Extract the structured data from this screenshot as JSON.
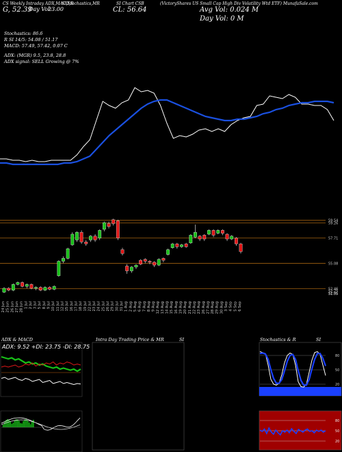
{
  "header": {
    "h1": "CS Weekly Intraday ADX,MACD,R",
    "h1b": "SI,Stochastics,MR",
    "h1c": "SI Chart CSB",
    "h1d": "(VictoryShares US Small Cap High Div Volatility Wtd ETF) MunafaSale.com",
    "h2a": "G, 52.39",
    "h2b": "Day Vol:",
    "h2c": "23.00",
    "cl": "CL: 56.64",
    "avg": "Avg Vol: 0.024 M",
    "dayvol": "Day Vol: 0   M"
  },
  "info": [
    "Stochastics: 86.6",
    "R                    SI 14/5: 54.08 / 51.17",
    "MACD: 57.49, 57.42, 0.07 C",
    "ADX:                    (MGR) 9.5, 23.8, 28.8",
    "ADX  signal: SELL  Growing @ 7%"
  ],
  "panels": {
    "adx_title": "ADX  & MACD",
    "adx_values": "ADX: 9.52  +DI: 23.75  -DI: 28.75",
    "intraday_title": "Intra  Day Trading Price  & MR",
    "intraday_si": "SI",
    "stoch_title": "Stochastics & R",
    "stoch_si": "SI"
  },
  "colors": {
    "up": "#18c018",
    "down": "#e01818",
    "ma": "#1a50e0",
    "stoch": "#1a40ff",
    "rsi_bg": "#a00000"
  },
  "chart_data": [
    {
      "type": "line",
      "title": "price vs moving average (upper panel)",
      "x": [
        0,
        1,
        2,
        3,
        4,
        5,
        6,
        7,
        8,
        9,
        10,
        11,
        12,
        13,
        14,
        15,
        16,
        17,
        18,
        19,
        20,
        21,
        22,
        23,
        24,
        25,
        26,
        27,
        28,
        29,
        30,
        31,
        32,
        33,
        34,
        35,
        36,
        37,
        38,
        39,
        40,
        41,
        42,
        43,
        44,
        45,
        46,
        47,
        48,
        49,
        50,
        51,
        52
      ],
      "series": [
        {
          "name": "price",
          "values": [
            52.4,
            52.4,
            52.3,
            52.3,
            52.2,
            52.3,
            52.2,
            52.2,
            52.3,
            52.3,
            52.3,
            52.3,
            52.7,
            53.3,
            53.8,
            55.2,
            56.6,
            56.3,
            56.1,
            56.5,
            56.7,
            57.6,
            57.3,
            57.4,
            57.2,
            56.3,
            55.0,
            53.9,
            54.1,
            54.0,
            54.2,
            54.5,
            54.6,
            54.4,
            54.6,
            54.4,
            54.9,
            55.2,
            55.4,
            55.5,
            56.3,
            56.4,
            57.0,
            56.9,
            56.8,
            57.1,
            56.9,
            56.4,
            56.4,
            56.3,
            56.3,
            56.0,
            55.2
          ]
        },
        {
          "name": "ma",
          "values": [
            52.1,
            52.1,
            52.0,
            52.0,
            52.0,
            52.0,
            52.0,
            52.0,
            52.0,
            52.0,
            52.1,
            52.1,
            52.2,
            52.4,
            52.6,
            53.1,
            53.6,
            54.1,
            54.5,
            54.9,
            55.3,
            55.7,
            56.1,
            56.4,
            56.6,
            56.7,
            56.7,
            56.5,
            56.3,
            56.1,
            55.9,
            55.7,
            55.5,
            55.4,
            55.3,
            55.2,
            55.2,
            55.3,
            55.3,
            55.4,
            55.5,
            55.7,
            55.8,
            56.0,
            56.1,
            56.3,
            56.4,
            56.5,
            56.5,
            56.6,
            56.6,
            56.6,
            56.5
          ]
        }
      ]
    },
    {
      "type": "bar",
      "title": "candlestick panel",
      "yaxis_labels": [
        "59.54",
        "59.26",
        "57.71",
        "55.08",
        "52.46",
        "52.25",
        "52.01",
        "51.95"
      ],
      "xticks": [
        "24 Jun",
        "25 Jun",
        "26 Jun",
        "27 Jun",
        "28 Jun",
        "1 Jul",
        "2 Jul",
        "3 Jul",
        "5 Jul",
        "8 Jul",
        "9 Jul",
        "10 Jul",
        "11 Jul",
        "12 Jul",
        "15 Jul",
        "16 Jul",
        "17 Jul",
        "18 Jul",
        "19 Jul",
        "22 Jul",
        "23 Jul",
        "24 Jul",
        "25 Jul",
        "26 Jul",
        "29 Jul",
        "30 Jul",
        "31 Jul",
        "1 Aug",
        "2 Aug",
        "5 Aug",
        "6 Aug",
        "7 Aug",
        "8 Aug",
        "9 Aug",
        "12 Aug",
        "13 Aug",
        "14 Aug",
        "15 Aug",
        "16 Aug",
        "19 Aug",
        "20 Aug",
        "21 Aug",
        "22 Aug",
        "23 Aug",
        "26 Aug",
        "27 Aug",
        "28 Aug",
        "29 Aug",
        "30 Aug",
        "3 Sep",
        "4 Sep",
        "5 Sep",
        "6 Sep"
      ],
      "candles": [
        {
          "o": 52.1,
          "c": 52.5,
          "h": 52.6,
          "l": 52.0
        },
        {
          "o": 52.5,
          "c": 52.3,
          "h": 52.6,
          "l": 52.2
        },
        {
          "o": 52.3,
          "c": 52.9,
          "h": 53.0,
          "l": 52.2
        },
        {
          "o": 52.9,
          "c": 53.1,
          "h": 53.2,
          "l": 52.8
        },
        {
          "o": 53.1,
          "c": 52.7,
          "h": 53.2,
          "l": 52.6
        },
        {
          "o": 52.7,
          "c": 52.9,
          "h": 53.0,
          "l": 52.5
        },
        {
          "o": 52.9,
          "c": 52.5,
          "h": 53.0,
          "l": 52.4
        },
        {
          "o": 52.5,
          "c": 52.6,
          "h": 52.7,
          "l": 52.3
        },
        {
          "o": 52.6,
          "c": 52.3,
          "h": 52.7,
          "l": 52.2
        },
        {
          "o": 52.3,
          "c": 52.6,
          "h": 52.7,
          "l": 52.2
        },
        {
          "o": 52.6,
          "c": 52.4,
          "h": 52.7,
          "l": 52.3
        },
        {
          "o": 52.4,
          "c": 52.7,
          "h": 52.8,
          "l": 52.3
        },
        {
          "o": 53.8,
          "c": 55.3,
          "h": 55.4,
          "l": 53.7
        },
        {
          "o": 55.3,
          "c": 55.6,
          "h": 55.8,
          "l": 55.1
        },
        {
          "o": 55.6,
          "c": 56.6,
          "h": 56.7,
          "l": 55.5
        },
        {
          "o": 57.0,
          "c": 58.1,
          "h": 58.3,
          "l": 56.9
        },
        {
          "o": 57.5,
          "c": 58.3,
          "h": 58.4,
          "l": 57.3
        },
        {
          "o": 58.3,
          "c": 57.3,
          "h": 58.5,
          "l": 57.1
        },
        {
          "o": 57.3,
          "c": 57.1,
          "h": 57.5,
          "l": 56.9
        },
        {
          "o": 57.5,
          "c": 57.9,
          "h": 58.0,
          "l": 57.3
        },
        {
          "o": 57.9,
          "c": 57.5,
          "h": 58.1,
          "l": 57.3
        },
        {
          "o": 57.7,
          "c": 58.5,
          "h": 58.6,
          "l": 57.5
        },
        {
          "o": 58.6,
          "c": 59.3,
          "h": 59.4,
          "l": 58.4
        },
        {
          "o": 59.2,
          "c": 58.9,
          "h": 59.4,
          "l": 58.7
        },
        {
          "o": 59.6,
          "c": 59.2,
          "h": 59.7,
          "l": 59.0
        },
        {
          "o": 59.5,
          "c": 57.7,
          "h": 59.6,
          "l": 57.5
        },
        {
          "o": 56.5,
          "c": 56.1,
          "h": 56.7,
          "l": 55.9
        },
        {
          "o": 54.8,
          "c": 54.3,
          "h": 55.0,
          "l": 54.0
        },
        {
          "o": 54.3,
          "c": 54.7,
          "h": 54.8,
          "l": 54.1
        },
        {
          "o": 54.7,
          "c": 54.9,
          "h": 55.0,
          "l": 54.5
        },
        {
          "o": 55.4,
          "c": 55.0,
          "h": 55.5,
          "l": 54.9
        },
        {
          "o": 55.5,
          "c": 55.3,
          "h": 55.6,
          "l": 55.1
        },
        {
          "o": 55.3,
          "c": 55.2,
          "h": 55.4,
          "l": 55.0
        },
        {
          "o": 55.2,
          "c": 54.9,
          "h": 55.3,
          "l": 54.7
        },
        {
          "o": 54.9,
          "c": 55.5,
          "h": 55.6,
          "l": 54.8
        },
        {
          "o": 55.6,
          "c": 55.4,
          "h": 55.7,
          "l": 55.2
        },
        {
          "o": 56.0,
          "c": 56.5,
          "h": 56.6,
          "l": 55.9
        },
        {
          "o": 56.7,
          "c": 57.1,
          "h": 57.2,
          "l": 56.6
        },
        {
          "o": 57.1,
          "c": 56.8,
          "h": 57.2,
          "l": 56.6
        },
        {
          "o": 56.8,
          "c": 57.0,
          "h": 57.1,
          "l": 56.7
        },
        {
          "o": 57.1,
          "c": 56.8,
          "h": 57.2,
          "l": 56.7
        },
        {
          "o": 57.2,
          "c": 58.0,
          "h": 58.1,
          "l": 57.1
        },
        {
          "o": 57.8,
          "c": 58.3,
          "h": 59.1,
          "l": 57.7
        },
        {
          "o": 57.9,
          "c": 57.6,
          "h": 58.0,
          "l": 57.4
        },
        {
          "o": 58.0,
          "c": 57.6,
          "h": 58.1,
          "l": 57.4
        },
        {
          "o": 58.1,
          "c": 58.5,
          "h": 58.6,
          "l": 58.0
        },
        {
          "o": 58.5,
          "c": 58.0,
          "h": 58.6,
          "l": 57.8
        },
        {
          "o": 58.2,
          "c": 58.5,
          "h": 58.6,
          "l": 58.1
        },
        {
          "o": 58.5,
          "c": 58.2,
          "h": 58.6,
          "l": 58.0
        },
        {
          "o": 58.1,
          "c": 57.6,
          "h": 58.2,
          "l": 57.4
        },
        {
          "o": 57.6,
          "c": 57.9,
          "h": 58.0,
          "l": 57.5
        },
        {
          "o": 57.7,
          "c": 57.1,
          "h": 57.8,
          "l": 56.9
        },
        {
          "o": 57.1,
          "c": 56.3,
          "h": 57.2,
          "l": 56.1
        }
      ],
      "hlines": [
        59.54,
        59.26,
        57.71,
        55.08,
        52.46
      ]
    },
    {
      "type": "line",
      "title": "ADX panel",
      "series": [
        {
          "name": "+DI",
          "values": [
            36,
            35,
            34,
            35,
            33,
            34,
            32,
            30,
            31,
            29,
            30,
            28,
            29,
            27,
            26,
            25,
            26,
            24,
            25,
            24,
            23,
            24,
            22,
            24
          ]
        },
        {
          "name": "-DI",
          "values": [
            26,
            27,
            26,
            27,
            28,
            26,
            27,
            29,
            28,
            30,
            27,
            29,
            28,
            30,
            29,
            31,
            28,
            30,
            29,
            31,
            30,
            28,
            29,
            28
          ]
        },
        {
          "name": "ADX",
          "values": [
            15,
            16,
            14,
            15,
            16,
            14,
            13,
            15,
            14,
            12,
            13,
            14,
            11,
            12,
            13,
            10,
            11,
            12,
            10,
            11,
            10,
            9,
            10,
            9.5
          ]
        }
      ]
    },
    {
      "type": "line",
      "title": "Stochastics panel",
      "yaxis_labels": [
        "80",
        "50",
        "20"
      ],
      "series": [
        {
          "name": "fast",
          "values": [
            88,
            86,
            84,
            60,
            30,
            20,
            18,
            22,
            40,
            65,
            80,
            85,
            82,
            60,
            25,
            15,
            14,
            20,
            45,
            70,
            86,
            88,
            82,
            60,
            38
          ]
        },
        {
          "name": "slow",
          "values": [
            84,
            85,
            83,
            72,
            50,
            32,
            22,
            22,
            30,
            48,
            68,
            80,
            82,
            72,
            48,
            28,
            18,
            18,
            30,
            52,
            72,
            84,
            84,
            74,
            58
          ]
        }
      ]
    },
    {
      "type": "line",
      "title": "MRSI panel",
      "yaxis_labels": [
        "80",
        "50",
        "20"
      ],
      "series": [
        {
          "name": "mrsi",
          "values": [
            52,
            48,
            55,
            42,
            58,
            46,
            40,
            52,
            44,
            38,
            50,
            46,
            52,
            44,
            56,
            48,
            42,
            54,
            50,
            46,
            52,
            55,
            48,
            50,
            44,
            52,
            48,
            52,
            46,
            50
          ]
        }
      ]
    }
  ]
}
